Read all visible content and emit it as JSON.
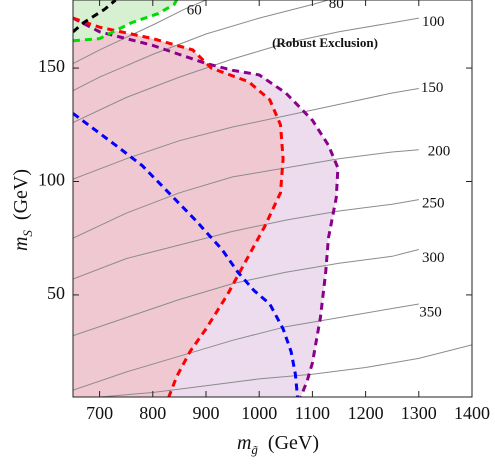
{
  "chart_data": {
    "type": "contour",
    "xlabel": {
      "main": "m",
      "sub": "g̃",
      "unit": "(GeV)"
    },
    "ylabel": {
      "main": "m",
      "sub": "S",
      "unit": "(GeV)"
    },
    "xlim": [
      650,
      1400
    ],
    "ylim": [
      5,
      180
    ],
    "xticks": [
      700,
      800,
      900,
      1000,
      1100,
      1200,
      1300,
      1400
    ],
    "yticks": [
      50,
      100,
      150
    ],
    "grid": false,
    "annotation": "(Robust Exclusion)",
    "colors": {
      "red_fill": "#f0c8d2",
      "purple_fill": "#ecdcee",
      "green_fill": "#d8f0d2",
      "contour_line": "#8c8c8c",
      "red_line": "#ff0000",
      "purple_line": "#8b008b",
      "blue_line": "#0000ff",
      "green_line": "#00dd00",
      "black_line": "#000000"
    },
    "contour_lines": [
      {
        "label": "60",
        "label_at": [
          878,
          175
        ],
        "points": [
          [
            650,
            152
          ],
          [
            700,
            158
          ],
          [
            800,
            169
          ],
          [
            860,
            176
          ],
          [
            900,
            180
          ]
        ]
      },
      {
        "label": "80",
        "label_at": [
          1145,
          178
        ],
        "points": [
          [
            650,
            140
          ],
          [
            700,
            146
          ],
          [
            800,
            156
          ],
          [
            900,
            165
          ],
          [
            1000,
            172
          ],
          [
            1100,
            178
          ],
          [
            1130,
            180
          ]
        ]
      },
      {
        "label": "100",
        "label_at": [
          1327,
          170
        ],
        "points": [
          [
            650,
            126
          ],
          [
            750,
            137
          ],
          [
            850,
            146
          ],
          [
            950,
            154
          ],
          [
            1050,
            161
          ],
          [
            1150,
            166
          ],
          [
            1250,
            170
          ],
          [
            1300,
            172
          ]
        ]
      },
      {
        "label": "150",
        "label_at": [
          1325,
          141
        ],
        "points": [
          [
            650,
            101
          ],
          [
            750,
            110
          ],
          [
            850,
            118
          ],
          [
            950,
            124
          ],
          [
            1050,
            129
          ],
          [
            1150,
            134
          ],
          [
            1250,
            139
          ],
          [
            1300,
            141
          ]
        ]
      },
      {
        "label": "200",
        "label_at": [
          1338,
          113
        ],
        "points": [
          [
            650,
            75
          ],
          [
            750,
            86
          ],
          [
            850,
            95
          ],
          [
            950,
            102
          ],
          [
            1050,
            106
          ],
          [
            1150,
            110
          ],
          [
            1250,
            113
          ],
          [
            1300,
            114
          ]
        ]
      },
      {
        "label": "250",
        "label_at": [
          1327,
          90
        ],
        "points": [
          [
            650,
            57
          ],
          [
            750,
            66
          ],
          [
            850,
            72
          ],
          [
            950,
            78
          ],
          [
            1050,
            83
          ],
          [
            1150,
            87
          ],
          [
            1250,
            90
          ],
          [
            1300,
            92
          ]
        ]
      },
      {
        "label": "300",
        "label_at": [
          1327,
          66
        ],
        "points": [
          [
            650,
            32
          ],
          [
            750,
            40
          ],
          [
            850,
            48
          ],
          [
            950,
            55
          ],
          [
            1050,
            60
          ],
          [
            1150,
            64
          ],
          [
            1250,
            67
          ],
          [
            1300,
            70
          ]
        ]
      },
      {
        "label": "350",
        "label_at": [
          1322,
          42
        ],
        "points": [
          [
            650,
            8
          ],
          [
            750,
            16
          ],
          [
            850,
            23
          ],
          [
            950,
            30
          ],
          [
            1050,
            36
          ],
          [
            1150,
            40
          ],
          [
            1250,
            44
          ],
          [
            1300,
            46
          ]
        ]
      },
      {
        "label": "",
        "label_at": null,
        "points": [
          [
            700,
            5
          ],
          [
            800,
            7
          ],
          [
            900,
            10
          ],
          [
            1000,
            13
          ],
          [
            1100,
            15
          ],
          [
            1200,
            18
          ],
          [
            1300,
            22
          ],
          [
            1400,
            28
          ]
        ]
      }
    ],
    "regions": [
      {
        "name": "purple-exclusion",
        "points": [
          [
            650,
            172
          ],
          [
            700,
            166
          ],
          [
            800,
            160
          ],
          [
            900,
            152
          ],
          [
            950,
            149
          ],
          [
            1000,
            147
          ],
          [
            1050,
            139
          ],
          [
            1100,
            127
          ],
          [
            1130,
            116
          ],
          [
            1148,
            106
          ],
          [
            1145,
            93
          ],
          [
            1130,
            75
          ],
          [
            1125,
            60
          ],
          [
            1115,
            40
          ],
          [
            1100,
            20
          ],
          [
            1090,
            12
          ],
          [
            1078,
            5
          ],
          [
            650,
            5
          ]
        ]
      },
      {
        "name": "red-exclusion",
        "points": [
          [
            650,
            172
          ],
          [
            700,
            168
          ],
          [
            800,
            163
          ],
          [
            875,
            158
          ],
          [
            910,
            150
          ],
          [
            980,
            144
          ],
          [
            1020,
            136
          ],
          [
            1040,
            125
          ],
          [
            1045,
            110
          ],
          [
            1040,
            95
          ],
          [
            1010,
            80
          ],
          [
            975,
            65
          ],
          [
            940,
            50
          ],
          [
            900,
            35
          ],
          [
            870,
            25
          ],
          [
            845,
            14
          ],
          [
            830,
            5
          ],
          [
            650,
            5
          ]
        ]
      },
      {
        "name": "green-region",
        "points": [
          [
            650,
            180
          ],
          [
            650,
            162
          ],
          [
            700,
            163
          ],
          [
            760,
            170
          ],
          [
            810,
            174
          ],
          [
            840,
            178
          ],
          [
            845,
            180
          ]
        ]
      }
    ],
    "boundary_lines": [
      {
        "name": "purple-boundary",
        "color": "#8b008b",
        "points": [
          [
            650,
            172
          ],
          [
            700,
            166
          ],
          [
            800,
            160
          ],
          [
            900,
            152
          ],
          [
            950,
            149
          ],
          [
            1000,
            147
          ],
          [
            1050,
            139
          ],
          [
            1100,
            127
          ],
          [
            1130,
            116
          ],
          [
            1148,
            106
          ],
          [
            1145,
            93
          ],
          [
            1130,
            75
          ],
          [
            1125,
            60
          ],
          [
            1115,
            40
          ],
          [
            1100,
            20
          ],
          [
            1090,
            12
          ],
          [
            1078,
            5
          ]
        ]
      },
      {
        "name": "red-boundary",
        "color": "#ff0000",
        "points": [
          [
            650,
            172
          ],
          [
            700,
            168
          ],
          [
            800,
            163
          ],
          [
            875,
            158
          ],
          [
            910,
            150
          ],
          [
            980,
            144
          ],
          [
            1020,
            136
          ],
          [
            1040,
            125
          ],
          [
            1045,
            110
          ],
          [
            1040,
            95
          ],
          [
            1010,
            80
          ],
          [
            975,
            65
          ],
          [
            940,
            50
          ],
          [
            900,
            35
          ],
          [
            870,
            25
          ],
          [
            845,
            14
          ],
          [
            830,
            5
          ]
        ]
      },
      {
        "name": "blue-boundary",
        "color": "#0000ff",
        "points": [
          [
            650,
            130
          ],
          [
            690,
            123
          ],
          [
            730,
            116
          ],
          [
            780,
            107
          ],
          [
            830,
            95
          ],
          [
            880,
            83
          ],
          [
            930,
            70
          ],
          [
            960,
            60
          ],
          [
            990,
            52
          ],
          [
            1020,
            46
          ],
          [
            1045,
            35
          ],
          [
            1060,
            25
          ],
          [
            1068,
            15
          ],
          [
            1072,
            5
          ]
        ]
      },
      {
        "name": "green-boundary",
        "color": "#00dd00",
        "points": [
          [
            650,
            162
          ],
          [
            700,
            163
          ],
          [
            760,
            170
          ],
          [
            810,
            174
          ],
          [
            840,
            178
          ],
          [
            845,
            180
          ]
        ]
      },
      {
        "name": "black-boundary",
        "color": "#000000",
        "points": [
          [
            650,
            166
          ],
          [
            670,
            170
          ],
          [
            690,
            173
          ],
          [
            710,
            176
          ],
          [
            730,
            180
          ]
        ]
      }
    ]
  }
}
